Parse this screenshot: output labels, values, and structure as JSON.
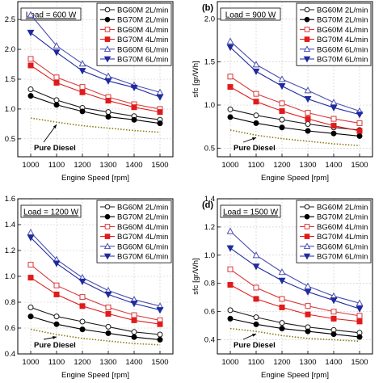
{
  "series_styles": [
    {
      "color": "#1a1a1a",
      "marker": "circle",
      "filled": false
    },
    {
      "color": "#000000",
      "marker": "circle",
      "filled": true
    },
    {
      "color": "#d9393b",
      "marker": "square",
      "filled": false
    },
    {
      "color": "#e01b1b",
      "marker": "square",
      "filled": true
    },
    {
      "color": "#4a4fb0",
      "marker": "triangle-up",
      "filled": false
    },
    {
      "color": "#1f2a9e",
      "marker": "triangle-down",
      "filled": true
    },
    {
      "color": "#8a7a10",
      "marker": "none",
      "filled": false,
      "dash": "dotted"
    }
  ],
  "chart_data": [
    {
      "type": "line",
      "panel_label": "",
      "load_label": "Load = 600 W",
      "annotation": "Pure Diesel",
      "xlabel": "Engine Speed [rpm]",
      "ylabel": "",
      "x": [
        1000,
        1100,
        1200,
        1300,
        1400,
        1500
      ],
      "ylim": [
        0.2,
        2.8
      ],
      "yticks": [
        0.5,
        1.0,
        1.5,
        2.0,
        2.5
      ],
      "ytick_labels": [
        "0.5",
        "1.0",
        "1.5",
        "2.0",
        "2.5"
      ],
      "legend_position": "top-right",
      "grid": true,
      "series": [
        {
          "name": "BG60M 2L/min",
          "values": [
            1.33,
            1.15,
            1.02,
            0.95,
            0.88,
            0.82
          ]
        },
        {
          "name": "BG70M 2L/min",
          "values": [
            1.22,
            1.07,
            0.96,
            0.87,
            0.82,
            0.76
          ]
        },
        {
          "name": "BG60M 4L/min",
          "values": [
            1.84,
            1.53,
            1.37,
            1.2,
            1.08,
            1.0
          ]
        },
        {
          "name": "BG70M 4L/min",
          "values": [
            1.73,
            1.44,
            1.28,
            1.14,
            1.03,
            0.95
          ]
        },
        {
          "name": "BG60M 6L/min",
          "values": [
            2.58,
            2.06,
            1.76,
            1.55,
            1.4,
            1.28
          ]
        },
        {
          "name": "BG70M 6L/min",
          "values": [
            2.28,
            1.95,
            1.64,
            1.47,
            1.36,
            1.2
          ]
        },
        {
          "name": "",
          "values": [
            0.85,
            0.78,
            0.72,
            0.68,
            0.64,
            0.61
          ]
        }
      ]
    },
    {
      "type": "line",
      "panel_label": "(b)",
      "load_label": "Load = 900 W",
      "annotation": "Pure Diesel",
      "xlabel": "Engine Speed [rpm]",
      "ylabel": "sfc [gr/Wh]",
      "x": [
        1000,
        1100,
        1200,
        1300,
        1400,
        1500
      ],
      "ylim": [
        0.4,
        2.2
      ],
      "yticks": [
        0.5,
        1.0,
        1.5,
        2.0
      ],
      "ytick_labels": [
        "0.5",
        "1.0",
        "1.5",
        "2.0"
      ],
      "legend_position": "top-right",
      "grid": true,
      "series": [
        {
          "name": "BG60M 2L/min",
          "values": [
            0.95,
            0.88,
            0.83,
            0.78,
            0.74,
            0.71
          ]
        },
        {
          "name": "BG70M 2L/min",
          "values": [
            0.86,
            0.79,
            0.74,
            0.7,
            0.67,
            0.64
          ]
        },
        {
          "name": "BG60M 4L/min",
          "values": [
            1.33,
            1.13,
            1.02,
            0.91,
            0.84,
            0.79
          ]
        },
        {
          "name": "BG70M 4L/min",
          "values": [
            1.21,
            1.04,
            0.93,
            0.84,
            0.76,
            0.7
          ]
        },
        {
          "name": "BG60M 6L/min",
          "values": [
            1.74,
            1.47,
            1.3,
            1.17,
            1.03,
            0.93
          ]
        },
        {
          "name": "BG70M 6L/min",
          "values": [
            1.67,
            1.39,
            1.22,
            1.07,
            0.97,
            0.89
          ]
        },
        {
          "name": "",
          "values": [
            0.71,
            0.65,
            0.61,
            0.58,
            0.55,
            0.53
          ]
        }
      ]
    },
    {
      "type": "line",
      "panel_label": "",
      "load_label": "Load = 1200 W",
      "annotation": "Pure Diesel",
      "xlabel": "Engine Speed [rpm]",
      "ylabel": "",
      "x": [
        1000,
        1100,
        1200,
        1300,
        1400,
        1500
      ],
      "ylim": [
        0.4,
        1.6
      ],
      "yticks": [
        0.4,
        0.6,
        0.8,
        1.0,
        1.2,
        1.4,
        1.6
      ],
      "ytick_labels": [
        "0.4",
        "0.6",
        "0.8",
        "1.0",
        "1.2",
        "1.4",
        "1.6"
      ],
      "legend_position": "top-right",
      "grid": true,
      "series": [
        {
          "name": "BG60M 2L/min",
          "values": [
            0.76,
            0.69,
            0.65,
            0.61,
            0.57,
            0.55
          ]
        },
        {
          "name": "BG70M 2L/min",
          "values": [
            0.69,
            0.63,
            0.59,
            0.56,
            0.53,
            0.51
          ]
        },
        {
          "name": "BG60M 4L/min",
          "values": [
            1.09,
            0.93,
            0.84,
            0.76,
            0.7,
            0.66
          ]
        },
        {
          "name": "BG70M 4L/min",
          "values": [
            0.99,
            0.86,
            0.77,
            0.71,
            0.66,
            0.63
          ]
        },
        {
          "name": "BG60M 6L/min",
          "values": [
            1.34,
            1.13,
            0.99,
            0.89,
            0.82,
            0.77
          ]
        },
        {
          "name": "BG70M 6L/min",
          "values": [
            1.3,
            1.1,
            0.96,
            0.86,
            0.79,
            0.74
          ]
        },
        {
          "name": "",
          "values": [
            0.59,
            0.55,
            0.52,
            0.5,
            0.48,
            0.47
          ]
        }
      ]
    },
    {
      "type": "line",
      "panel_label": "(d)",
      "load_label": "Load = 1500 W",
      "annotation": "Pure Diesel",
      "xlabel": "Engine Speed [rpm]",
      "ylabel": "sfc [gr/Wh]",
      "x": [
        1000,
        1100,
        1200,
        1300,
        1400,
        1500
      ],
      "ylim": [
        0.3,
        1.4
      ],
      "yticks": [
        0.4,
        0.6,
        0.8,
        1.0,
        1.2,
        1.4
      ],
      "ytick_labels": [
        "0.4",
        "0.6",
        "0.8",
        "1.0",
        "1.2",
        "1.4"
      ],
      "legend_position": "top-right",
      "grid": true,
      "series": [
        {
          "name": "BG60M 2L/min",
          "values": [
            0.61,
            0.56,
            0.52,
            0.49,
            0.47,
            0.45
          ]
        },
        {
          "name": "BG70M 2L/min",
          "values": [
            0.55,
            0.51,
            0.48,
            0.46,
            0.44,
            0.42
          ]
        },
        {
          "name": "BG60M 4L/min",
          "values": [
            0.9,
            0.77,
            0.69,
            0.64,
            0.6,
            0.57
          ]
        },
        {
          "name": "BG70M 4L/min",
          "values": [
            0.79,
            0.69,
            0.63,
            0.58,
            0.55,
            0.53
          ]
        },
        {
          "name": "BG60M 6L/min",
          "values": [
            1.17,
            1.0,
            0.88,
            0.78,
            0.71,
            0.66
          ]
        },
        {
          "name": "BG70M 6L/min",
          "values": [
            1.05,
            0.92,
            0.82,
            0.74,
            0.68,
            0.62
          ]
        },
        {
          "name": "",
          "values": [
            0.48,
            0.46,
            0.43,
            0.41,
            0.4,
            0.39
          ]
        }
      ]
    }
  ]
}
